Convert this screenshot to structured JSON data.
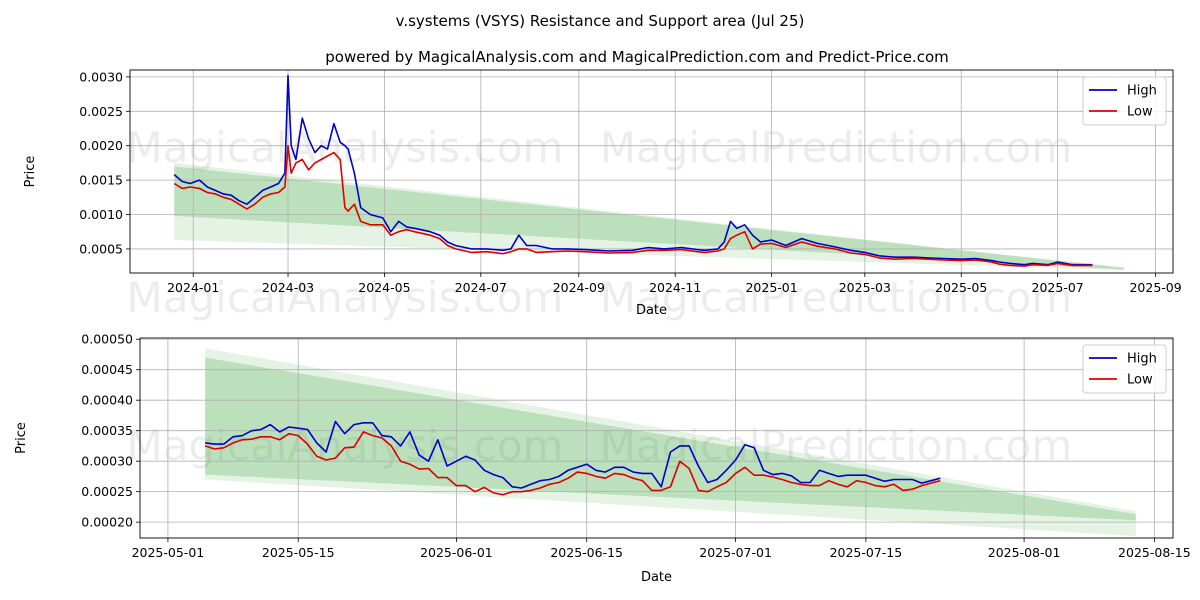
{
  "page_title": "v.systems (VSYS) Resistance and Support area (Jul 25)",
  "subtitle": "powered by MagicalAnalysis.com and MagicalPrediction.com and Predict-Price.com",
  "watermarks": [
    "MagicalAnalysis.com",
    "MagicalPrediction.com"
  ],
  "colors": {
    "high": "#0000cc",
    "low": "#dd0000",
    "band": "#2ca02c",
    "grid": "#b0b0b0"
  },
  "legend": {
    "high": "High",
    "low": "Low"
  },
  "chart_data": [
    {
      "type": "line",
      "xlabel": "Date",
      "ylabel": "Price",
      "x_tick_labels": [
        "2024-01",
        "2024-03",
        "2024-05",
        "2024-07",
        "2024-09",
        "2024-11",
        "2025-01",
        "2025-03",
        "2025-05",
        "2025-07",
        "2025-09"
      ],
      "y_tick_labels": [
        "0.0005",
        "0.0010",
        "0.0015",
        "0.0020",
        "0.0025",
        "0.0030"
      ],
      "xlim": [
        "2023-11-22",
        "2025-09-12"
      ],
      "ylim": [
        0.00015,
        0.0031
      ],
      "grid": true,
      "legend_position": "top-right",
      "band_outer": {
        "x": [
          "2023-12-20",
          "2025-08-12"
        ],
        "upper": [
          0.00175,
          0.00022
        ],
        "lower": [
          0.00063,
          0.00019
        ]
      },
      "band_inner": {
        "x": [
          "2023-12-20",
          "2025-08-12"
        ],
        "upper": [
          0.0017,
          0.00023
        ],
        "lower": [
          0.00098,
          0.0002
        ]
      },
      "series": [
        {
          "name": "High",
          "x": [
            "2023-12-20",
            "2023-12-25",
            "2023-12-30",
            "2024-01-05",
            "2024-01-10",
            "2024-01-15",
            "2024-01-20",
            "2024-01-25",
            "2024-01-30",
            "2024-02-04",
            "2024-02-09",
            "2024-02-14",
            "2024-02-19",
            "2024-02-24",
            "2024-02-28",
            "2024-03-01",
            "2024-03-03",
            "2024-03-06",
            "2024-03-10",
            "2024-03-14",
            "2024-03-18",
            "2024-03-22",
            "2024-03-26",
            "2024-03-30",
            "2024-04-03",
            "2024-04-06",
            "2024-04-08",
            "2024-04-12",
            "2024-04-16",
            "2024-04-22",
            "2024-04-30",
            "2024-05-05",
            "2024-05-10",
            "2024-05-15",
            "2024-05-20",
            "2024-05-30",
            "2024-06-05",
            "2024-06-10",
            "2024-06-15",
            "2024-06-25",
            "2024-07-05",
            "2024-07-15",
            "2024-07-20",
            "2024-07-25",
            "2024-07-30",
            "2024-08-05",
            "2024-08-15",
            "2024-08-25",
            "2024-09-05",
            "2024-09-20",
            "2024-10-05",
            "2024-10-15",
            "2024-10-25",
            "2024-11-05",
            "2024-11-15",
            "2024-11-20",
            "2024-11-28",
            "2024-12-02",
            "2024-12-06",
            "2024-12-10",
            "2024-12-15",
            "2024-12-20",
            "2024-12-25",
            "2025-01-01",
            "2025-01-10",
            "2025-01-20",
            "2025-01-30",
            "2025-02-10",
            "2025-02-20",
            "2025-03-01",
            "2025-03-10",
            "2025-03-20",
            "2025-04-01",
            "2025-04-10",
            "2025-04-20",
            "2025-05-01",
            "2025-05-10",
            "2025-05-20",
            "2025-05-25",
            "2025-06-01",
            "2025-06-10",
            "2025-06-15",
            "2025-06-25",
            "2025-07-01",
            "2025-07-10",
            "2025-07-15",
            "2025-07-23"
          ],
          "values": [
            0.00158,
            0.00148,
            0.00145,
            0.0015,
            0.0014,
            0.00135,
            0.0013,
            0.00128,
            0.0012,
            0.00115,
            0.00125,
            0.00135,
            0.0014,
            0.00145,
            0.0016,
            0.00302,
            0.002,
            0.0018,
            0.0024,
            0.0021,
            0.0019,
            0.002,
            0.00195,
            0.00232,
            0.00205,
            0.002,
            0.00195,
            0.0016,
            0.0011,
            0.001,
            0.00095,
            0.00075,
            0.0009,
            0.00082,
            0.0008,
            0.00075,
            0.0007,
            0.0006,
            0.00055,
            0.0005,
            0.0005,
            0.00048,
            0.0005,
            0.0007,
            0.00055,
            0.00055,
            0.0005,
            0.0005,
            0.00049,
            0.00047,
            0.00048,
            0.00052,
            0.0005,
            0.00052,
            0.00049,
            0.00048,
            0.0005,
            0.0006,
            0.0009,
            0.0008,
            0.00085,
            0.0007,
            0.0006,
            0.00063,
            0.00055,
            0.00065,
            0.00058,
            0.00053,
            0.00048,
            0.00045,
            0.0004,
            0.00038,
            0.00038,
            0.00037,
            0.00036,
            0.00035,
            0.00036,
            0.00033,
            0.00031,
            0.00029,
            0.00027,
            0.00029,
            0.00027,
            0.00031,
            0.00027,
            0.00027,
            0.00027
          ]
        },
        {
          "name": "Low",
          "x": [
            "2023-12-20",
            "2023-12-25",
            "2023-12-30",
            "2024-01-05",
            "2024-01-10",
            "2024-01-15",
            "2024-01-20",
            "2024-01-25",
            "2024-01-30",
            "2024-02-04",
            "2024-02-09",
            "2024-02-14",
            "2024-02-19",
            "2024-02-24",
            "2024-02-28",
            "2024-03-01",
            "2024-03-03",
            "2024-03-06",
            "2024-03-10",
            "2024-03-14",
            "2024-03-18",
            "2024-03-22",
            "2024-03-26",
            "2024-03-30",
            "2024-04-03",
            "2024-04-06",
            "2024-04-08",
            "2024-04-12",
            "2024-04-16",
            "2024-04-22",
            "2024-04-30",
            "2024-05-05",
            "2024-05-10",
            "2024-05-15",
            "2024-05-20",
            "2024-05-30",
            "2024-06-05",
            "2024-06-10",
            "2024-06-15",
            "2024-06-25",
            "2024-07-05",
            "2024-07-15",
            "2024-07-20",
            "2024-07-25",
            "2024-07-30",
            "2024-08-05",
            "2024-08-15",
            "2024-08-25",
            "2024-09-05",
            "2024-09-20",
            "2024-10-05",
            "2024-10-15",
            "2024-10-25",
            "2024-11-05",
            "2024-11-15",
            "2024-11-20",
            "2024-11-28",
            "2024-12-02",
            "2024-12-06",
            "2024-12-10",
            "2024-12-15",
            "2024-12-20",
            "2024-12-25",
            "2025-01-01",
            "2025-01-10",
            "2025-01-20",
            "2025-01-30",
            "2025-02-10",
            "2025-02-20",
            "2025-03-01",
            "2025-03-10",
            "2025-03-20",
            "2025-04-01",
            "2025-04-10",
            "2025-04-20",
            "2025-05-01",
            "2025-05-10",
            "2025-05-20",
            "2025-05-25",
            "2025-06-01",
            "2025-06-10",
            "2025-06-15",
            "2025-06-25",
            "2025-07-01",
            "2025-07-10",
            "2025-07-15",
            "2025-07-23"
          ],
          "values": [
            0.00145,
            0.00138,
            0.0014,
            0.00138,
            0.00132,
            0.0013,
            0.00125,
            0.00122,
            0.00115,
            0.00108,
            0.00115,
            0.00125,
            0.0013,
            0.00132,
            0.0014,
            0.002,
            0.0016,
            0.00175,
            0.0018,
            0.00165,
            0.00175,
            0.0018,
            0.00185,
            0.0019,
            0.0018,
            0.0011,
            0.00105,
            0.00115,
            0.0009,
            0.00085,
            0.00085,
            0.0007,
            0.00075,
            0.00078,
            0.00075,
            0.0007,
            0.00065,
            0.00055,
            0.0005,
            0.00045,
            0.00046,
            0.00043,
            0.00046,
            0.0005,
            0.0005,
            0.00045,
            0.00046,
            0.00047,
            0.00046,
            0.00044,
            0.00045,
            0.00048,
            0.00048,
            0.00049,
            0.00046,
            0.00045,
            0.00047,
            0.0005,
            0.00065,
            0.0007,
            0.00075,
            0.0005,
            0.00057,
            0.00058,
            0.00052,
            0.0006,
            0.00054,
            0.0005,
            0.00044,
            0.00042,
            0.00037,
            0.00035,
            0.00036,
            0.00035,
            0.00034,
            0.00033,
            0.00034,
            0.00031,
            0.00028,
            0.00026,
            0.00025,
            0.00027,
            0.00026,
            0.00029,
            0.00026,
            0.00026,
            0.00026
          ]
        }
      ]
    },
    {
      "type": "line",
      "xlabel": "Date",
      "ylabel": "Price",
      "x_tick_labels": [
        "2025-05-01",
        "2025-05-15",
        "2025-06-01",
        "2025-06-15",
        "2025-07-01",
        "2025-07-15",
        "2025-08-01",
        "2025-08-15"
      ],
      "y_tick_labels": [
        "0.00020",
        "0.00025",
        "0.00030",
        "0.00035",
        "0.00040",
        "0.00045",
        "0.00050"
      ],
      "xlim": [
        "2025-04-28",
        "2025-08-17"
      ],
      "ylim": [
        0.000174,
        0.000502
      ],
      "grid": true,
      "legend_position": "top-right",
      "band_outer": {
        "x": [
          "2025-05-05",
          "2025-08-13"
        ],
        "upper": [
          0.000485,
          0.000218
        ],
        "lower": [
          0.00027,
          0.000177
        ]
      },
      "band_inner": {
        "x": [
          "2025-05-05",
          "2025-08-13"
        ],
        "upper": [
          0.00047,
          0.000213
        ],
        "lower": [
          0.000278,
          0.000203
        ]
      },
      "series": [
        {
          "name": "High",
          "x": [
            "2025-05-05",
            "2025-05-06",
            "2025-05-07",
            "2025-05-08",
            "2025-05-09",
            "2025-05-10",
            "2025-05-11",
            "2025-05-12",
            "2025-05-13",
            "2025-05-14",
            "2025-05-15",
            "2025-05-16",
            "2025-05-17",
            "2025-05-18",
            "2025-05-19",
            "2025-05-20",
            "2025-05-21",
            "2025-05-22",
            "2025-05-23",
            "2025-05-24",
            "2025-05-25",
            "2025-05-26",
            "2025-05-27",
            "2025-05-28",
            "2025-05-29",
            "2025-05-30",
            "2025-05-31",
            "2025-06-01",
            "2025-06-02",
            "2025-06-03",
            "2025-06-04",
            "2025-06-05",
            "2025-06-06",
            "2025-06-07",
            "2025-06-08",
            "2025-06-09",
            "2025-06-10",
            "2025-06-11",
            "2025-06-12",
            "2025-06-13",
            "2025-06-14",
            "2025-06-15",
            "2025-06-16",
            "2025-06-17",
            "2025-06-18",
            "2025-06-19",
            "2025-06-20",
            "2025-06-21",
            "2025-06-22",
            "2025-06-23",
            "2025-06-24",
            "2025-06-25",
            "2025-06-26",
            "2025-06-27",
            "2025-06-28",
            "2025-06-29",
            "2025-06-30",
            "2025-07-01",
            "2025-07-02",
            "2025-07-03",
            "2025-07-04",
            "2025-07-05",
            "2025-07-06",
            "2025-07-07",
            "2025-07-08",
            "2025-07-09",
            "2025-07-10",
            "2025-07-11",
            "2025-07-12",
            "2025-07-13",
            "2025-07-14",
            "2025-07-15",
            "2025-07-16",
            "2025-07-17",
            "2025-07-18",
            "2025-07-19",
            "2025-07-20",
            "2025-07-21",
            "2025-07-22",
            "2025-07-23"
          ],
          "values": [
            0.00033,
            0.000328,
            0.000328,
            0.00034,
            0.000342,
            0.00035,
            0.000352,
            0.00036,
            0.000348,
            0.000356,
            0.000354,
            0.000352,
            0.00033,
            0.000315,
            0.000365,
            0.000345,
            0.00036,
            0.000363,
            0.000363,
            0.000342,
            0.00034,
            0.000325,
            0.000348,
            0.00031,
            0.0003,
            0.000335,
            0.000292,
            0.0003,
            0.000308,
            0.000302,
            0.000285,
            0.000278,
            0.000273,
            0.000258,
            0.000256,
            0.000262,
            0.000268,
            0.00027,
            0.000275,
            0.000285,
            0.00029,
            0.000295,
            0.000285,
            0.000282,
            0.00029,
            0.00029,
            0.000282,
            0.00028,
            0.00028,
            0.000258,
            0.000315,
            0.000325,
            0.000325,
            0.000292,
            0.000265,
            0.00027,
            0.000285,
            0.000302,
            0.000327,
            0.000322,
            0.000285,
            0.000278,
            0.00028,
            0.000276,
            0.000265,
            0.000265,
            0.000285,
            0.00028,
            0.000275,
            0.000277,
            0.000277,
            0.000277,
            0.000272,
            0.000267,
            0.00027,
            0.00027,
            0.00027,
            0.000264,
            0.000268,
            0.000272
          ]
        },
        {
          "name": "Low",
          "x": [
            "2025-05-05",
            "2025-05-06",
            "2025-05-07",
            "2025-05-08",
            "2025-05-09",
            "2025-05-10",
            "2025-05-11",
            "2025-05-12",
            "2025-05-13",
            "2025-05-14",
            "2025-05-15",
            "2025-05-16",
            "2025-05-17",
            "2025-05-18",
            "2025-05-19",
            "2025-05-20",
            "2025-05-21",
            "2025-05-22",
            "2025-05-23",
            "2025-05-24",
            "2025-05-25",
            "2025-05-26",
            "2025-05-27",
            "2025-05-28",
            "2025-05-29",
            "2025-05-30",
            "2025-05-31",
            "2025-06-01",
            "2025-06-02",
            "2025-06-03",
            "2025-06-04",
            "2025-06-05",
            "2025-06-06",
            "2025-06-07",
            "2025-06-08",
            "2025-06-09",
            "2025-06-10",
            "2025-06-11",
            "2025-06-12",
            "2025-06-13",
            "2025-06-14",
            "2025-06-15",
            "2025-06-16",
            "2025-06-17",
            "2025-06-18",
            "2025-06-19",
            "2025-06-20",
            "2025-06-21",
            "2025-06-22",
            "2025-06-23",
            "2025-06-24",
            "2025-06-25",
            "2025-06-26",
            "2025-06-27",
            "2025-06-28",
            "2025-06-29",
            "2025-06-30",
            "2025-07-01",
            "2025-07-02",
            "2025-07-03",
            "2025-07-04",
            "2025-07-05",
            "2025-07-06",
            "2025-07-07",
            "2025-07-08",
            "2025-07-09",
            "2025-07-10",
            "2025-07-11",
            "2025-07-12",
            "2025-07-13",
            "2025-07-14",
            "2025-07-15",
            "2025-07-16",
            "2025-07-17",
            "2025-07-18",
            "2025-07-19",
            "2025-07-20",
            "2025-07-21",
            "2025-07-22",
            "2025-07-23"
          ],
          "values": [
            0.000325,
            0.00032,
            0.000322,
            0.00033,
            0.000335,
            0.000336,
            0.00034,
            0.00034,
            0.000335,
            0.000345,
            0.000342,
            0.000328,
            0.000308,
            0.000302,
            0.000305,
            0.000322,
            0.000323,
            0.000348,
            0.000342,
            0.000338,
            0.000325,
            0.0003,
            0.000295,
            0.000287,
            0.000288,
            0.000273,
            0.000273,
            0.00026,
            0.00026,
            0.00025,
            0.000257,
            0.000248,
            0.000245,
            0.00025,
            0.00025,
            0.000252,
            0.000256,
            0.000262,
            0.000265,
            0.000272,
            0.000282,
            0.00028,
            0.000275,
            0.000272,
            0.00028,
            0.000278,
            0.000272,
            0.000268,
            0.000252,
            0.000252,
            0.000258,
            0.0003,
            0.000288,
            0.000252,
            0.00025,
            0.000258,
            0.000265,
            0.00028,
            0.00029,
            0.000277,
            0.000277,
            0.000274,
            0.00027,
            0.000265,
            0.000262,
            0.00026,
            0.00026,
            0.000268,
            0.000262,
            0.000258,
            0.000268,
            0.000265,
            0.00026,
            0.000258,
            0.000262,
            0.000252,
            0.000254,
            0.00026,
            0.000264,
            0.000268
          ]
        }
      ]
    }
  ]
}
